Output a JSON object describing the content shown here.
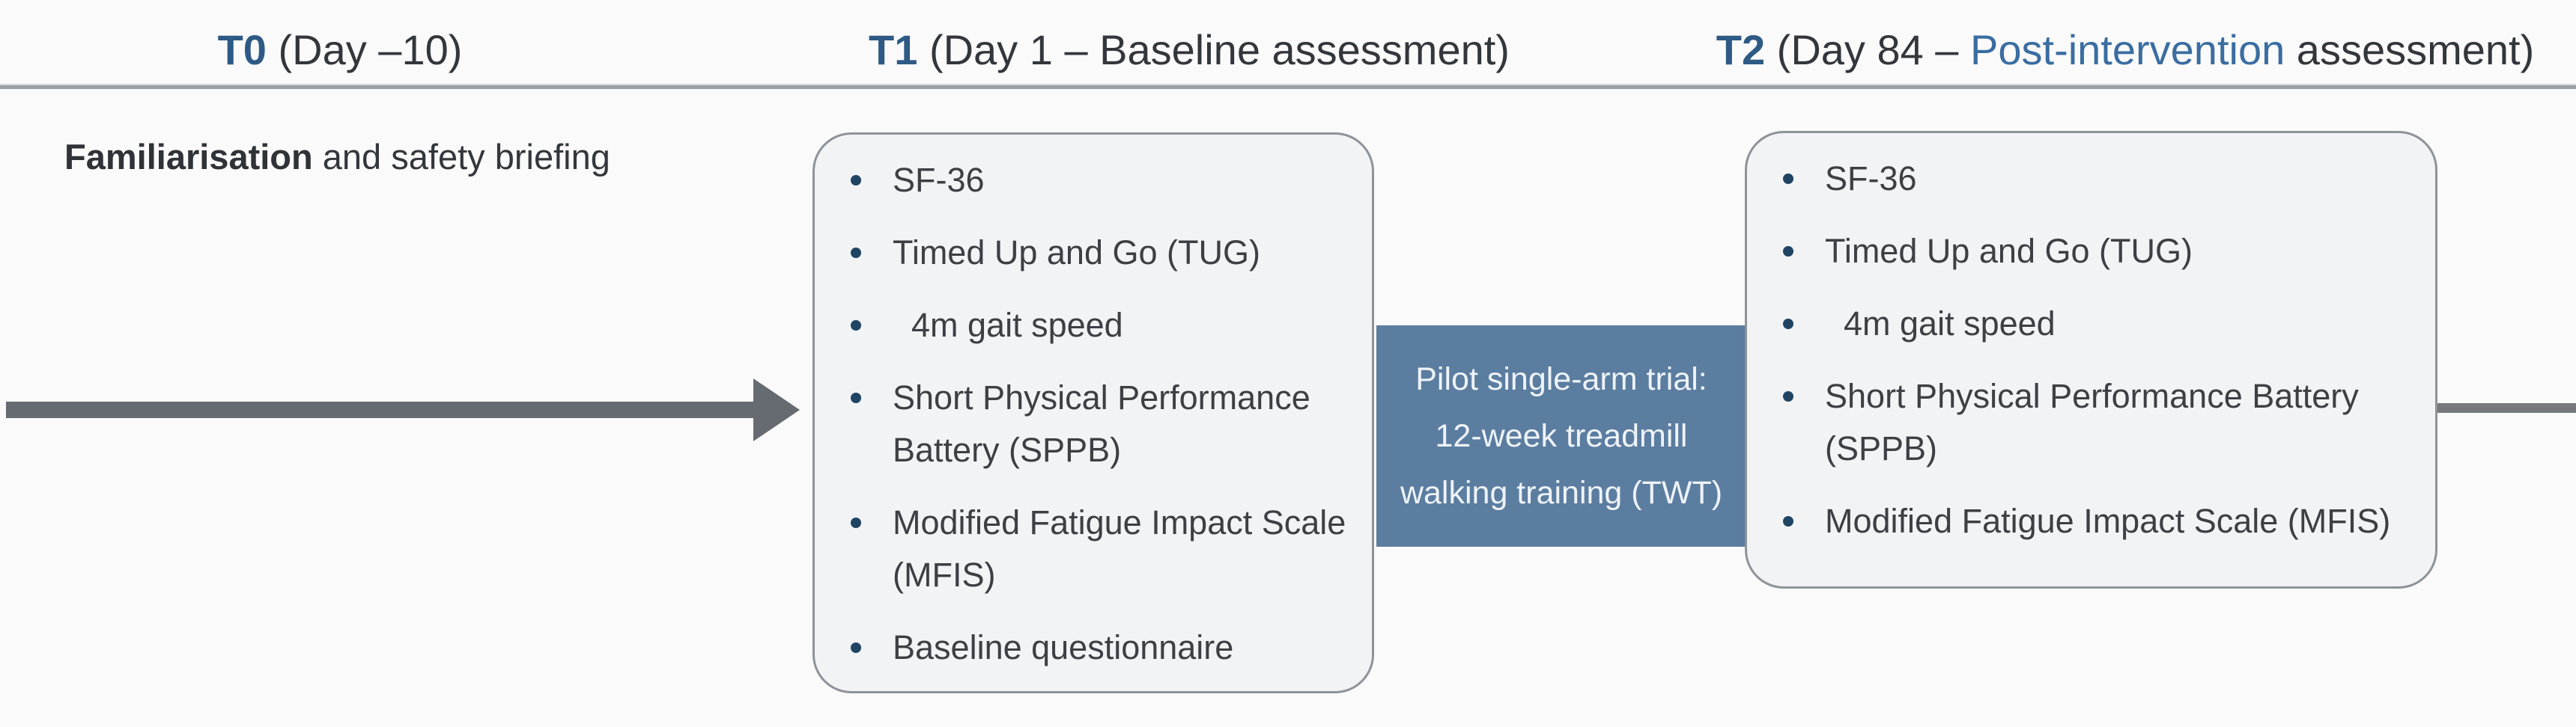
{
  "colors": {
    "background": "#fafafa",
    "accent-blue": "#2e5a85",
    "highlight-blue": "#3a6da1",
    "text-dark": "#33373c",
    "rule-gray": "#9ba0a6",
    "arrow-gray": "#666b71",
    "box-fill": "#f2f3f5",
    "box-border": "#8e939a",
    "bullet-dot": "#1f4464",
    "intervention-fill": "#5b7da0",
    "intervention-text": "#eef3f8"
  },
  "headers": {
    "t0": {
      "label": "T0",
      "rest": " (Day –10)"
    },
    "t1": {
      "label": "T1",
      "rest": " (Day 1 – Baseline assessment)"
    },
    "t2": {
      "label": "T2",
      "pre": " (Day 84 – ",
      "highlight": "Post-intervention",
      "post": " assessment)"
    }
  },
  "t0_note": {
    "bold": "Familiarisation",
    "rest": " and safety briefing"
  },
  "baseline_box": {
    "items": [
      "SF-36",
      "Timed Up and Go (TUG)",
      "  4m gait speed",
      "Short Physical Performance\nBattery (SPPB)",
      "Modified Fatigue Impact Scale\n(MFIS)",
      "Baseline questionnaire"
    ]
  },
  "intervention_box": {
    "text": "Pilot single-arm trial:\n12-week treadmill\nwalking training (TWT)"
  },
  "post_box": {
    "items": [
      "SF-36",
      "Timed Up and Go (TUG)",
      "  4m gait speed",
      "Short Physical Performance Battery\n(SPPB)",
      "Modified Fatigue Impact Scale (MFIS)"
    ]
  }
}
